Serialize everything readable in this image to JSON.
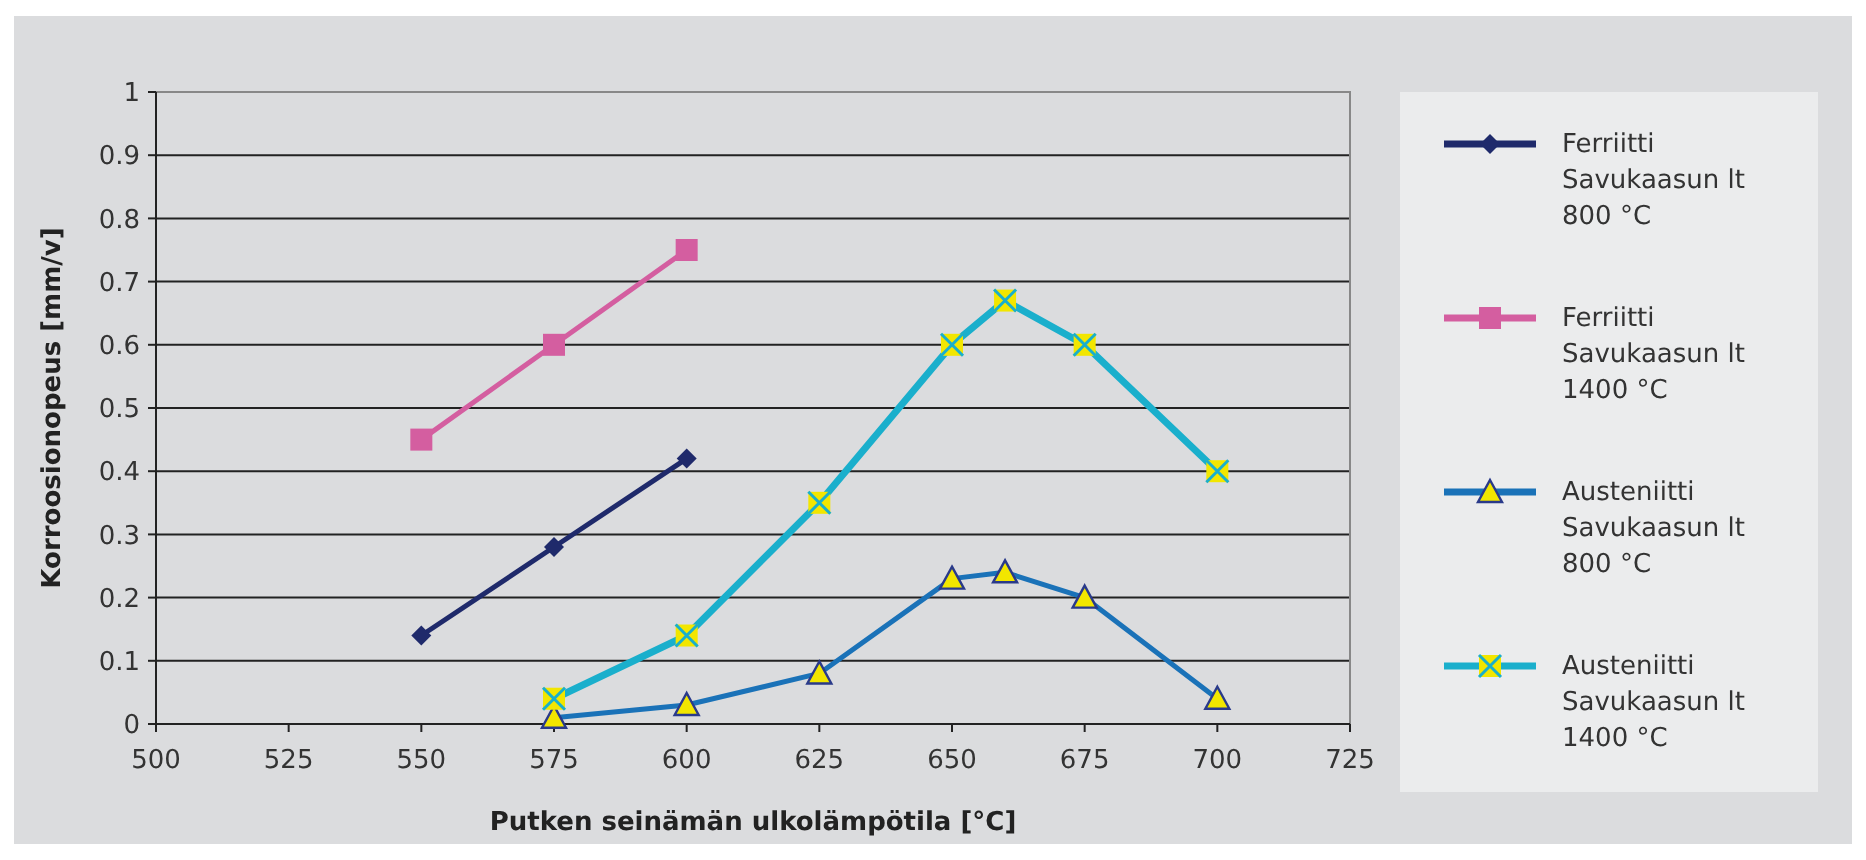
{
  "chart_data": {
    "type": "line",
    "xlabel": "Putken seinämän ulkolämpötila [°C]",
    "ylabel": "Korroosionopeus [mm/v]",
    "xlim": [
      500,
      725
    ],
    "xticks": [
      500,
      525,
      550,
      575,
      600,
      625,
      650,
      675,
      700,
      725
    ],
    "ylim": [
      0,
      1
    ],
    "yticks": [
      0,
      0.1,
      0.2,
      0.3,
      0.4,
      0.5,
      0.6,
      0.7,
      0.8,
      0.9,
      1
    ],
    "grid": "y",
    "legend": "right",
    "series": [
      {
        "name": "Ferriitti Savukaasun lt 800 °C",
        "color": "#1f2a6b",
        "marker": "diamond",
        "x": [
          550,
          575,
          600
        ],
        "values": [
          0.14,
          0.28,
          0.42
        ]
      },
      {
        "name": "Ferriitti Savukaasun lt 1400 °C",
        "color": "#d45ea0",
        "marker": "square",
        "x": [
          550,
          575,
          600
        ],
        "values": [
          0.45,
          0.6,
          0.75
        ]
      },
      {
        "name": "Austeniitti Savukaasun lt 800 °C",
        "color": "#1a72b8",
        "marker": "triangle",
        "x": [
          575,
          600,
          625,
          650,
          660,
          675,
          700
        ],
        "values": [
          0.01,
          0.03,
          0.08,
          0.23,
          0.24,
          0.2,
          0.04
        ]
      },
      {
        "name": "Austeniitti Savukaasun lt 1400 °C",
        "color": "#1aafcc",
        "marker": "cross",
        "x": [
          575,
          600,
          625,
          650,
          660,
          675,
          700
        ],
        "values": [
          0.04,
          0.14,
          0.35,
          0.6,
          0.67,
          0.6,
          0.4
        ]
      }
    ]
  }
}
